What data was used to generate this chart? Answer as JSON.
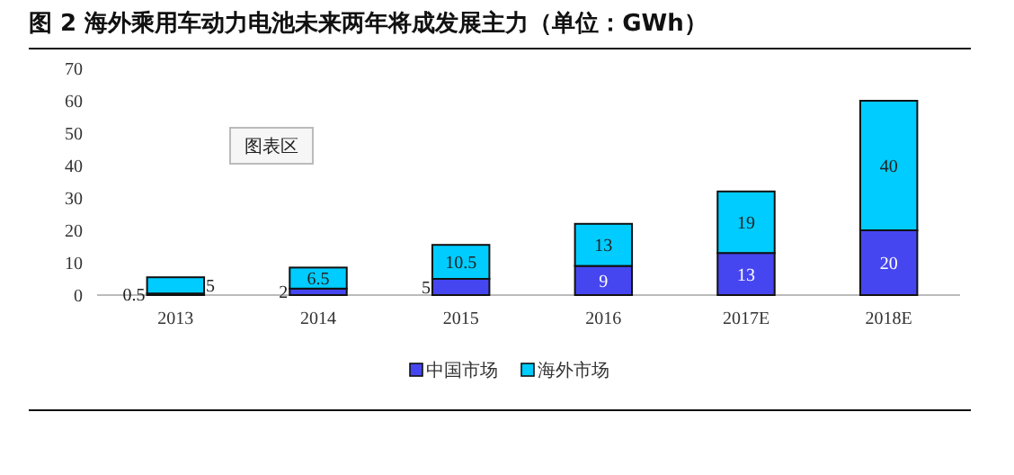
{
  "chart_data": {
    "type": "bar",
    "title": "图 2 海外乘用车动力电池未来两年将成发展主力（单位：GWh）",
    "categories": [
      "2013",
      "2014",
      "2015",
      "2016",
      "2017E",
      "2018E"
    ],
    "series": [
      {
        "name": "中国市场",
        "color": "#4646f0",
        "values": [
          0.5,
          2,
          5,
          9,
          13,
          20
        ]
      },
      {
        "name": "海外市场",
        "color": "#00ccff",
        "values": [
          5,
          6.5,
          10.5,
          13,
          19,
          40
        ]
      }
    ],
    "stacked": true,
    "ylim": [
      0,
      70
    ],
    "yticks": [
      0,
      10,
      20,
      30,
      40,
      50,
      60,
      70
    ],
    "data_labels": true,
    "legend": "bottom",
    "annotations": [
      "图表区"
    ]
  }
}
